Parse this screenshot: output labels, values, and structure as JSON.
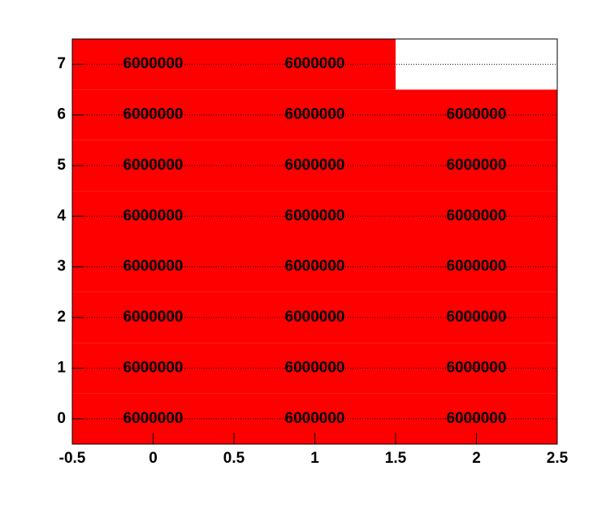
{
  "chart_data": {
    "type": "heatmap",
    "x": [
      0,
      1,
      2
    ],
    "y": [
      0,
      1,
      2,
      3,
      4,
      5,
      6,
      7
    ],
    "values": [
      [
        6000000,
        6000000,
        6000000
      ],
      [
        6000000,
        6000000,
        6000000
      ],
      [
        6000000,
        6000000,
        6000000
      ],
      [
        6000000,
        6000000,
        6000000
      ],
      [
        6000000,
        6000000,
        6000000
      ],
      [
        6000000,
        6000000,
        6000000
      ],
      [
        6000000,
        6000000,
        6000000
      ],
      [
        6000000,
        6000000,
        null
      ]
    ],
    "color": "#ff0000",
    "xlim": [
      -0.5,
      2.5
    ],
    "xticks": [
      -0.5,
      0,
      0.5,
      1,
      1.5,
      2,
      2.5
    ],
    "ylim": [
      -0.5,
      7.5
    ],
    "yticks": [
      0,
      1,
      2,
      3,
      4,
      5,
      6,
      7
    ],
    "ygrid": true
  }
}
